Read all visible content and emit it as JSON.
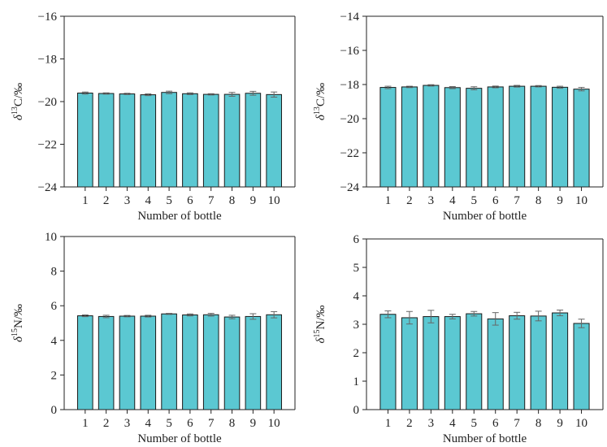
{
  "chart_data": [
    {
      "type": "bar",
      "categories": [
        "1",
        "2",
        "3",
        "4",
        "5",
        "6",
        "7",
        "8",
        "9",
        "10"
      ],
      "values": [
        -19.6,
        -19.62,
        -19.64,
        -19.68,
        -19.57,
        -19.63,
        -19.66,
        -19.66,
        -19.61,
        -19.67
      ],
      "errors": [
        0.05,
        0.03,
        0.03,
        0.04,
        0.06,
        0.04,
        0.03,
        0.09,
        0.09,
        0.12
      ],
      "xlabel": "Number of bottle",
      "ylabel_parts": [
        "δ",
        "13",
        "C/‰"
      ],
      "ylim": [
        -24,
        -16
      ],
      "yticks": [
        -16,
        -18,
        -20,
        -22,
        -24
      ],
      "ytick_labels": [
        "−16",
        "−18",
        "−20",
        "−22",
        "−24"
      ],
      "bar_color": "#5bc8d2",
      "grid": false
    },
    {
      "type": "bar",
      "categories": [
        "1",
        "2",
        "3",
        "4",
        "5",
        "6",
        "7",
        "8",
        "9",
        "10"
      ],
      "values": [
        -18.17,
        -18.14,
        -18.05,
        -18.18,
        -18.22,
        -18.14,
        -18.1,
        -18.1,
        -18.16,
        -18.27
      ],
      "errors": [
        0.07,
        0.04,
        0.04,
        0.06,
        0.09,
        0.05,
        0.05,
        0.04,
        0.06,
        0.1
      ],
      "xlabel": "Number of bottle",
      "ylabel_parts": [
        "δ",
        "13",
        "C/‰"
      ],
      "ylim": [
        -24,
        -14
      ],
      "yticks": [
        -14,
        -16,
        -18,
        -20,
        -22,
        -24
      ],
      "ytick_labels": [
        "−14",
        "−16",
        "−18",
        "−20",
        "−22",
        "−24"
      ],
      "bar_color": "#5bc8d2",
      "grid": false
    },
    {
      "type": "bar",
      "categories": [
        "1",
        "2",
        "3",
        "4",
        "5",
        "6",
        "7",
        "8",
        "9",
        "10"
      ],
      "values": [
        5.42,
        5.38,
        5.4,
        5.4,
        5.53,
        5.47,
        5.48,
        5.35,
        5.38,
        5.48
      ],
      "errors": [
        0.05,
        0.07,
        0.04,
        0.05,
        0.03,
        0.06,
        0.08,
        0.1,
        0.16,
        0.18
      ],
      "xlabel": "Number of bottle",
      "ylabel_parts": [
        "δ",
        "15",
        "N/‰"
      ],
      "ylim": [
        0,
        10
      ],
      "yticks": [
        0,
        2,
        4,
        6,
        8,
        10
      ],
      "ytick_labels": [
        "0",
        "2",
        "4",
        "6",
        "8",
        "10"
      ],
      "bar_color": "#5bc8d2",
      "grid": false
    },
    {
      "type": "bar",
      "categories": [
        "1",
        "2",
        "3",
        "4",
        "5",
        "6",
        "7",
        "8",
        "9",
        "10"
      ],
      "values": [
        3.35,
        3.23,
        3.27,
        3.27,
        3.37,
        3.19,
        3.3,
        3.29,
        3.4,
        3.03
      ],
      "errors": [
        0.12,
        0.22,
        0.22,
        0.08,
        0.08,
        0.22,
        0.12,
        0.17,
        0.1,
        0.15
      ],
      "xlabel": "Number of bottle",
      "ylabel_parts": [
        "δ",
        "15",
        "N/‰"
      ],
      "ylim": [
        0,
        6
      ],
      "yticks": [
        0,
        1,
        2,
        3,
        4,
        5,
        6
      ],
      "ytick_labels": [
        "0",
        "1",
        "2",
        "3",
        "4",
        "5",
        "6"
      ],
      "bar_color": "#5bc8d2",
      "grid": false
    }
  ]
}
